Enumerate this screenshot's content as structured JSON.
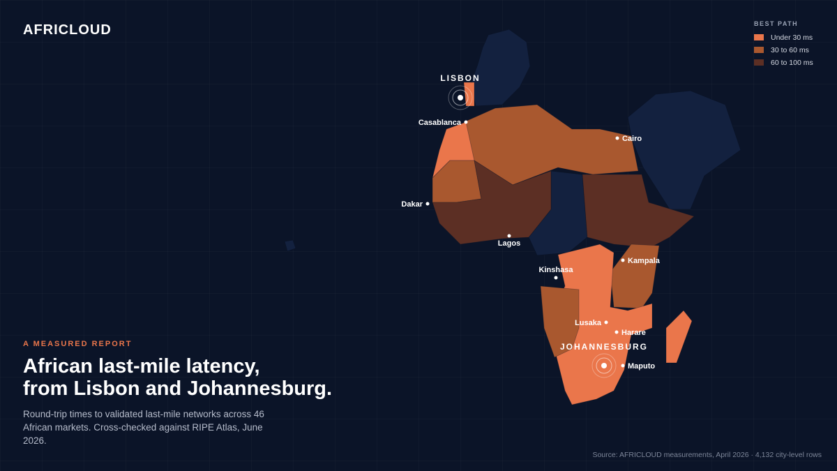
{
  "brand": "AFRICLOUD",
  "legend": {
    "title": "BEST PATH",
    "items": [
      {
        "label": "Under 30 ms",
        "color": "#ea764b"
      },
      {
        "label": "30 to 60 ms",
        "color": "#a9582f"
      },
      {
        "label": "60 to 100 ms",
        "color": "#5c2f24"
      }
    ]
  },
  "hubs": [
    {
      "label": "LISBON"
    },
    {
      "label": "JOHANNESBURG"
    }
  ],
  "cities": [
    {
      "label": "Casablanca"
    },
    {
      "label": "Cairo"
    },
    {
      "label": "Dakar"
    },
    {
      "label": "Lagos"
    },
    {
      "label": "Kinshasa"
    },
    {
      "label": "Kampala"
    },
    {
      "label": "Lusaka"
    },
    {
      "label": "Harare"
    },
    {
      "label": "Maputo"
    }
  ],
  "eyebrow": "A MEASURED REPORT",
  "headline": [
    "African last-mile latency,",
    "from Lisbon and Johannesburg."
  ],
  "description": "Round-trip times to validated last-mile networks across 46 African markets. Cross-checked against RIPE Atlas, June 2026.",
  "source": "Source: AFRICLOUD measurements, April 2026 · 4,132 city-level rows"
}
